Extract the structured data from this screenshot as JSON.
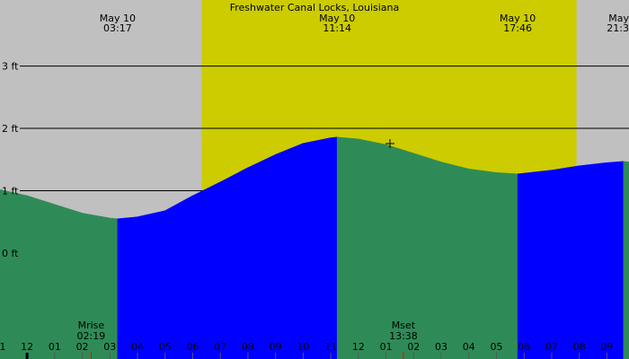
{
  "chart_data": {
    "type": "area",
    "title": "Freshwater Canal Locks, Louisiana",
    "xlim": [
      -0.98,
      21.8
    ],
    "ylim": [
      -1.7,
      4.06
    ],
    "yticks": [
      {
        "value": 0,
        "label": "0 ft"
      },
      {
        "value": 1,
        "label": "1 ft"
      },
      {
        "value": 2,
        "label": "2 ft"
      },
      {
        "value": 3,
        "label": "3 ft"
      }
    ],
    "xticks": [
      {
        "value": -1,
        "label": "1"
      },
      {
        "value": 0,
        "label": "12"
      },
      {
        "value": 1,
        "label": "01"
      },
      {
        "value": 2,
        "label": "02"
      },
      {
        "value": 3,
        "label": "03"
      },
      {
        "value": 4,
        "label": "04"
      },
      {
        "value": 5,
        "label": "05"
      },
      {
        "value": 6,
        "label": "06"
      },
      {
        "value": 7,
        "label": "07"
      },
      {
        "value": 8,
        "label": "08"
      },
      {
        "value": 9,
        "label": "09"
      },
      {
        "value": 10,
        "label": "10"
      },
      {
        "value": 11,
        "label": "11"
      },
      {
        "value": 12,
        "label": "12"
      },
      {
        "value": 13,
        "label": "01"
      },
      {
        "value": 14,
        "label": "02"
      },
      {
        "value": 15,
        "label": "03"
      },
      {
        "value": 16,
        "label": "04"
      },
      {
        "value": 17,
        "label": "05"
      },
      {
        "value": 18,
        "label": "06"
      },
      {
        "value": 19,
        "label": "07"
      },
      {
        "value": 20,
        "label": "08"
      },
      {
        "value": 21,
        "label": "09"
      }
    ],
    "daylight": [
      6.32,
      19.9
    ],
    "background_color": "#c0c0c0",
    "daylight_color": "#cccc00",
    "rising_color": "#0000ff",
    "falling_color": "#2e8b57",
    "x": [
      -1,
      0,
      1,
      2,
      3,
      3.28,
      4,
      5,
      6,
      7,
      8,
      9,
      10,
      11,
      11.23,
      12,
      13,
      14,
      15,
      16,
      17,
      17.77,
      18,
      19,
      20,
      21,
      21.6,
      21.8
    ],
    "values": [
      1.02,
      0.92,
      0.78,
      0.64,
      0.56,
      0.55,
      0.58,
      0.68,
      0.92,
      1.14,
      1.37,
      1.58,
      1.76,
      1.85,
      1.86,
      1.83,
      1.74,
      1.6,
      1.46,
      1.35,
      1.29,
      1.27,
      1.28,
      1.33,
      1.4,
      1.45,
      1.47,
      1.46
    ],
    "events": [
      {
        "date": "May 10",
        "time": "03:17",
        "x": 3.28
      },
      {
        "date": "May 10",
        "time": "11:14",
        "x": 11.23
      },
      {
        "date": "May 10",
        "time": "17:46",
        "x": 17.77
      },
      {
        "date": "May",
        "time": "21:3",
        "x": 21.62
      }
    ],
    "moon": [
      {
        "label": "Mrise",
        "time": "02:19",
        "x": 2.32,
        "color": "#ff0000"
      },
      {
        "label": "Mset",
        "time": "13:38",
        "x": 13.63,
        "color": "#ff0000"
      }
    ]
  }
}
